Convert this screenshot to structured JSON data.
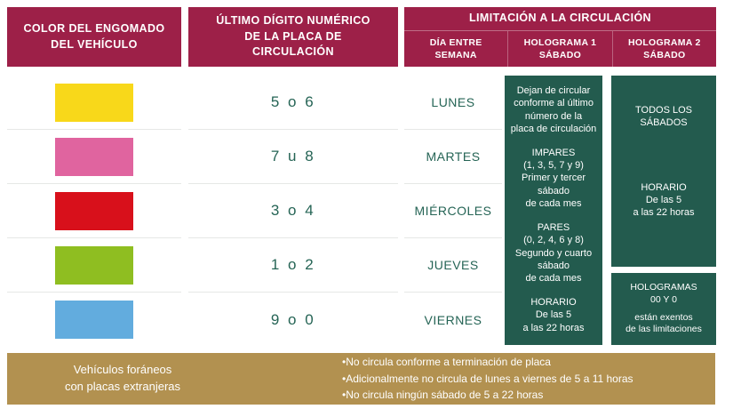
{
  "colors": {
    "crimson": "#9D2048",
    "panel-green": "#235B4E",
    "tan": "#B29150",
    "teal-text": "#256455",
    "divider": "#E6E8E6"
  },
  "header": {
    "col_engomado": "COLOR DEL ENGOMADO\nDEL VEHÍCULO",
    "col_digito": "ÚLTIMO DÍGITO NUMÉRICO\nDE LA PLACA DE\nCIRCULACIÓN",
    "col_limitacion": "LIMITACIÓN A LA CIRCULACIÓN",
    "sub_dia": "DÍA ENTRE\nSEMANA",
    "sub_holograma1": "HOLOGRAMA 1\nSÁBADO",
    "sub_holograma2": "HOLOGRAMA 2\nSÁBADO"
  },
  "rows": [
    {
      "color_name": "amarillo",
      "color": "#F8D81A",
      "digits": "5 o 6",
      "day": "LUNES"
    },
    {
      "color_name": "rosa",
      "color": "#E0649F",
      "digits": "7 u 8",
      "day": "MARTES"
    },
    {
      "color_name": "rojo",
      "color": "#D8101B",
      "digits": "3 o 4",
      "day": "MIÉRCOLES"
    },
    {
      "color_name": "verde",
      "color": "#8FBE21",
      "digits": "1 o 2",
      "day": "JUEVES"
    },
    {
      "color_name": "azul",
      "color": "#62ACDE",
      "digits": "9 o 0",
      "day": "VIERNES"
    }
  ],
  "holograma1": {
    "intro": "Dejan de circular\nconforme al último\nnúmero de la\nplaca de circulación",
    "impares": "IMPARES\n(1, 3, 5, 7 y 9)\nPrimer y tercer\nsábado\nde cada mes",
    "pares": "PARES\n(0, 2, 4, 6 y 8)\nSegundo y cuarto\nsábado\nde cada mes",
    "horario": "HORARIO\nDe las 5\na las 22 horas"
  },
  "holograma2": {
    "todos": "TODOS LOS\nSÁBADOS",
    "horario": "HORARIO\nDe las 5\na las 22 horas",
    "exentos_title": "HOLOGRAMAS\n00 Y 0",
    "exentos_text": "están exentos\nde las limitaciones"
  },
  "footer": {
    "label": "Vehículos foráneos\ncon placas extranjeras",
    "bullets": [
      "•No circula conforme a terminación de placa",
      "•Adicionalmente no circula de lunes a viernes de 5 a 11 horas",
      "•No circula ningún sábado de 5 a 22 horas"
    ]
  }
}
